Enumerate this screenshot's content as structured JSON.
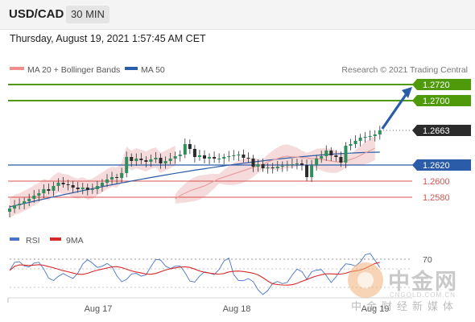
{
  "header": {
    "symbol": "USD/CAD",
    "timeframe": "30 MIN"
  },
  "datetime": "Thursday, August 19, 2021 1:57:45 AM CET",
  "legend": {
    "ma20": "MA 20 + Bollinger Bands",
    "ma50": "MA 50",
    "credit": "Research © 2021 Trading Central"
  },
  "rsi_legend": {
    "rsi": "RSI",
    "ma9": "9MA"
  },
  "watermark": {
    "cn": "中金网",
    "en": "CNGOLD.COM.CN",
    "sub": "中金财经新媒体"
  },
  "colors": {
    "green": "#4e9a0a",
    "blue": "#2a5ca8",
    "red": "#d9534f",
    "arrow": "#2a5ca8",
    "candle": "#2f8f5a",
    "band": "#f3cfd0",
    "dark": "#2b2b2b"
  },
  "chart_data": {
    "type": "candlestick",
    "ylim": [
      1.2545,
      1.2737
    ],
    "x_labels": [
      "Aug 17",
      "Aug 18",
      "Aug 19"
    ],
    "levels": [
      {
        "value": 1.272,
        "label": "1.2720",
        "kind": "resistance"
      },
      {
        "value": 1.27,
        "label": "1.2700",
        "kind": "resistance"
      },
      {
        "value": 1.2663,
        "label": "1.2663",
        "kind": "last"
      },
      {
        "value": 1.262,
        "label": "1.2620",
        "kind": "pivot"
      },
      {
        "value": 1.26,
        "label": "1.2600",
        "kind": "support"
      },
      {
        "value": 1.258,
        "label": "1.2580",
        "kind": "support"
      }
    ],
    "close": [
      1.2566,
      1.257,
      1.2572,
      1.2575,
      1.2578,
      1.2582,
      1.2585,
      1.259,
      1.2588,
      1.2594,
      1.2598,
      1.2596,
      1.2595,
      1.2592,
      1.259,
      1.2592,
      1.2589,
      1.259,
      1.2594,
      1.2598,
      1.2602,
      1.2605,
      1.2604,
      1.261,
      1.263,
      1.2625,
      1.2628,
      1.2626,
      1.2624,
      1.2627,
      1.2629,
      1.2622,
      1.2625,
      1.2628,
      1.2631,
      1.2633,
      1.2646,
      1.264,
      1.263,
      1.2632,
      1.2628,
      1.263,
      1.2628,
      1.2628,
      1.263,
      1.2631,
      1.2632,
      1.2633,
      1.2629,
      1.2628,
      1.2618,
      1.2621,
      1.2616,
      1.2617,
      1.2616,
      1.2618,
      1.2619,
      1.262,
      1.2621,
      1.2622,
      1.262,
      1.2605,
      1.262,
      1.2628,
      1.2631,
      1.2638,
      1.2632,
      1.263,
      1.2623,
      1.2644,
      1.2646,
      1.265,
      1.2654,
      1.2655,
      1.2656,
      1.2658,
      1.2663
    ],
    "ma20": [
      1.2578,
      1.2582,
      1.2585,
      1.2588,
      1.259,
      1.2592,
      1.2594,
      1.2597,
      1.26,
      1.2603,
      1.2605,
      1.2607,
      1.2609,
      1.2611,
      1.2613,
      1.2615,
      1.2617,
      1.2619,
      1.2621,
      1.2624,
      1.2626,
      1.2628,
      1.263,
      1.2631,
      1.263,
      1.263,
      1.2629,
      1.2629,
      1.2628,
      1.2628,
      1.2627,
      1.2626,
      1.2625,
      1.2624,
      1.2624,
      1.2625,
      1.2627,
      1.2629,
      1.2632,
      1.2635,
      1.2638,
      1.2641
    ],
    "ma20_start": 34,
    "ma50_start": [
      1.2568,
      1.2636
    ],
    "rsi_level": 70
  }
}
